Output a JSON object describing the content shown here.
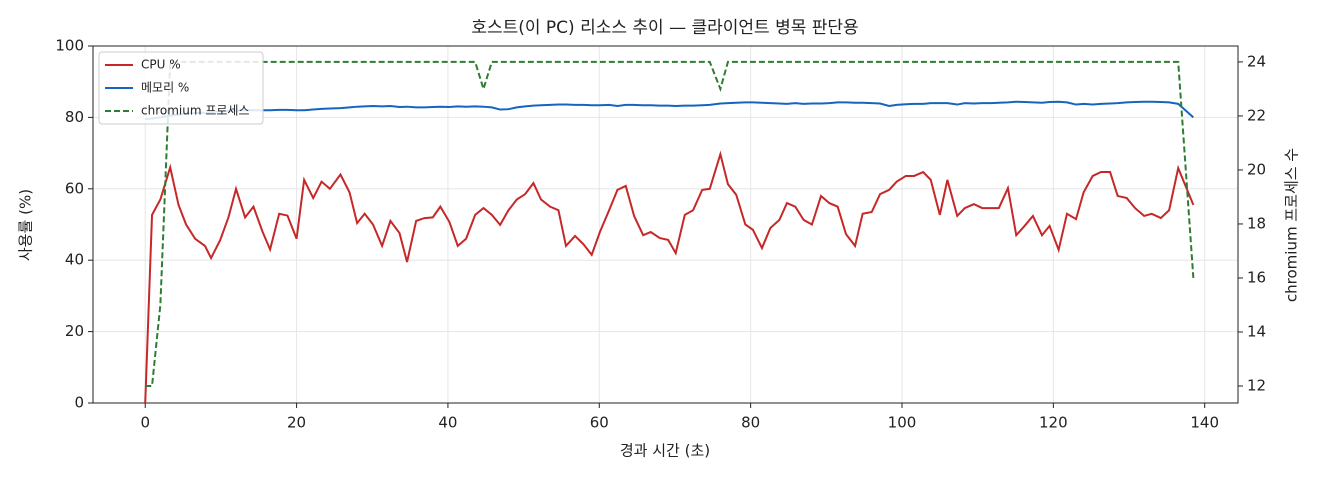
{
  "chart_data": {
    "type": "line",
    "title": "호스트(이 PC) 리소스 추이 — 클라이언트 병목 판단용",
    "x_label": "경과 시간 (초)",
    "y_label": "사용률 (%)",
    "y2_label": "chromium 프로세스 수",
    "x": [
      0,
      0.9,
      2,
      3.3,
      4.4,
      5.4,
      6.6,
      7.9,
      8.7,
      9.9,
      11,
      12,
      13.2,
      14.3,
      15.5,
      16.5,
      17.7,
      18.8,
      20,
      21,
      22.2,
      23.3,
      24.4,
      25.8,
      27,
      28,
      29,
      30.1,
      31.3,
      32.4,
      33.6,
      34.6,
      35.8,
      36.9,
      38,
      39,
      40.2,
      41.3,
      42.4,
      43.6,
      44.7,
      45.8,
      46.9,
      48,
      49.1,
      50.2,
      51.3,
      52.3,
      53.5,
      54.6,
      55.6,
      56.8,
      57.9,
      59,
      60.1,
      61.3,
      62.4,
      63.5,
      64.6,
      65.8,
      66.8,
      68,
      69.1,
      70.1,
      71.3,
      72.4,
      73.6,
      74.6,
      76,
      77,
      78.1,
      79.3,
      80.3,
      81.5,
      82.6,
      83.8,
      84.8,
      85.9,
      87,
      88.1,
      89.3,
      90.4,
      91.5,
      92.6,
      93.8,
      94.8,
      96,
      97.1,
      98.3,
      99.3,
      100.5,
      101.6,
      102.8,
      103.8,
      105,
      106,
      107.3,
      108.3,
      109.5,
      110.6,
      111.8,
      112.8,
      114,
      115.1,
      116.2,
      117.3,
      118.5,
      119.5,
      120.7,
      121.8,
      123,
      124,
      125.2,
      126.3,
      127.5,
      128.5,
      129.7,
      130.8,
      132,
      133,
      134.2,
      135.3,
      136.5,
      138.5
    ],
    "series": [
      {
        "name": "CPU %",
        "color": "#c62828",
        "linestyle": "solid",
        "values": [
          0,
          52.7,
          57,
          66,
          55.5,
          50,
          46,
          44,
          40.6,
          45.6,
          52,
          60,
          52,
          55,
          48,
          43,
          53,
          52.5,
          46,
          62.5,
          57.4,
          62,
          60,
          64,
          59,
          50.4,
          53,
          50,
          44,
          51,
          47.6,
          39.5,
          51,
          51.8,
          52,
          55,
          50.7,
          44,
          46,
          52.7,
          54.6,
          52.7,
          49.9,
          54,
          57,
          58.5,
          61.6,
          57,
          55,
          54,
          44,
          46.8,
          44.5,
          41.5,
          48,
          54,
          59.7,
          60.8,
          52.4,
          47,
          47.9,
          46.2,
          45.7,
          42,
          52.7,
          54,
          59.7,
          60,
          69.7,
          61.3,
          58.3,
          50,
          48.5,
          43.4,
          49,
          51.3,
          56,
          55,
          51.3,
          50,
          58,
          56,
          55,
          47.3,
          44,
          53,
          53.5,
          58.5,
          59.7,
          62,
          63.6,
          63.6,
          64.7,
          62.5,
          52.7,
          62.5,
          52.4,
          54.6,
          55.7,
          54.6,
          54.6,
          54.6,
          60.2,
          47,
          49.6,
          52.4,
          47,
          49.6,
          42.9,
          53,
          51.5,
          59,
          63.6,
          64.7,
          64.7,
          58,
          57.4,
          54.6,
          52.4,
          53,
          51.8,
          54,
          65.8,
          55.5
        ]
      },
      {
        "name": "메모리 %",
        "color": "#1565c0",
        "linestyle": "solid",
        "values": [
          79.5,
          79.7,
          80,
          80.5,
          80.8,
          81,
          81.2,
          81.3,
          81.5,
          81.7,
          81.8,
          81.9,
          82,
          82,
          82,
          82,
          82.1,
          82.1,
          82,
          82,
          82.2,
          82.4,
          82.5,
          82.6,
          82.8,
          83,
          83.1,
          83.2,
          83.1,
          83.2,
          82.9,
          83,
          82.8,
          82.8,
          82.9,
          83,
          82.9,
          83.1,
          83,
          83.1,
          83,
          82.8,
          82.2,
          82.3,
          82.8,
          83.1,
          83.3,
          83.4,
          83.5,
          83.6,
          83.6,
          83.5,
          83.5,
          83.4,
          83.4,
          83.5,
          83.2,
          83.5,
          83.5,
          83.4,
          83.4,
          83.3,
          83.3,
          83.2,
          83.3,
          83.3,
          83.4,
          83.5,
          83.9,
          84,
          84.1,
          84.2,
          84.2,
          84.1,
          84,
          83.9,
          83.8,
          84,
          83.8,
          83.9,
          83.9,
          84,
          84.2,
          84.2,
          84.1,
          84.1,
          84,
          83.9,
          83.2,
          83.5,
          83.7,
          83.8,
          83.8,
          84,
          84,
          84,
          83.6,
          84,
          83.9,
          84,
          84,
          84.1,
          84.2,
          84.4,
          84.3,
          84.2,
          84.1,
          84.3,
          84.4,
          84.2,
          83.6,
          83.8,
          83.6,
          83.8,
          83.9,
          84,
          84.2,
          84.3,
          84.4,
          84.4,
          84.3,
          84.2,
          83.8,
          80
        ]
      },
      {
        "name": "chromium 프로세스",
        "color": "#2e7d32",
        "linestyle": "dashed",
        "axis": "y2",
        "values": [
          12,
          12,
          15,
          24,
          24,
          24,
          24,
          24,
          24,
          24,
          24,
          24,
          24,
          24,
          24,
          24,
          24,
          24,
          24,
          24,
          24,
          24,
          24,
          24,
          24,
          24,
          24,
          24,
          24,
          24,
          24,
          24,
          24,
          24,
          24,
          24,
          24,
          24,
          24,
          24,
          23,
          24,
          24,
          24,
          24,
          24,
          24,
          24,
          24,
          24,
          24,
          24,
          24,
          24,
          24,
          24,
          24,
          24,
          24,
          24,
          24,
          24,
          24,
          24,
          24,
          24,
          24,
          24,
          23,
          24,
          24,
          24,
          24,
          24,
          24,
          24,
          24,
          24,
          24,
          24,
          24,
          24,
          24,
          24,
          24,
          24,
          24,
          24,
          24,
          24,
          24,
          24,
          24,
          24,
          24,
          24,
          24,
          24,
          24,
          24,
          24,
          24,
          24,
          24,
          24,
          24,
          24,
          24,
          24,
          24,
          24,
          24,
          24,
          24,
          24,
          24,
          24,
          24,
          24,
          24,
          24,
          24,
          24,
          16
        ]
      }
    ],
    "xlim": [
      -6.9,
      144.4
    ],
    "xticks": [
      0,
      20,
      40,
      60,
      80,
      100,
      120,
      140
    ],
    "ylim": [
      0,
      100
    ],
    "yticks": [
      0,
      20,
      40,
      60,
      80,
      100
    ],
    "y2lim": [
      11.37,
      24.59
    ],
    "y2ticks": [
      12,
      14,
      16,
      18,
      20,
      22,
      24
    ],
    "grid": true,
    "legend": "upper-left"
  }
}
